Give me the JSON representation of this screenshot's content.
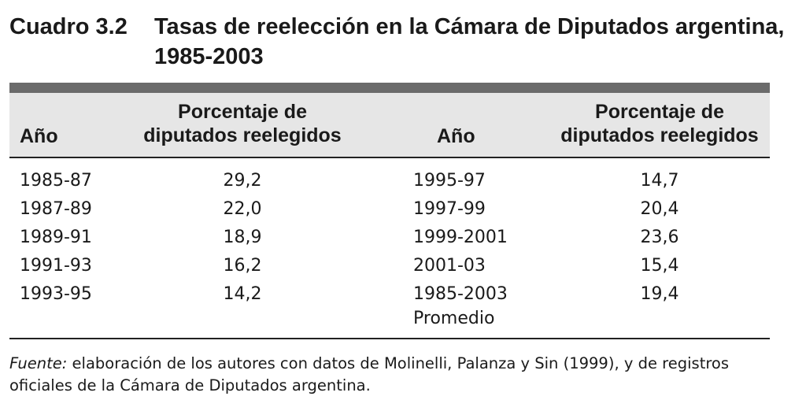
{
  "title": {
    "label": "Cuadro 3.2",
    "text_line1": "Tasas de reelección en la Cámara de Diputados argentina,",
    "text_line2": "1985-2003"
  },
  "table": {
    "headers": {
      "year": "Año",
      "pct_line1": "Porcentaje de",
      "pct_line2": "diputados reelegidos"
    },
    "left_rows": [
      {
        "year": "1985-87",
        "value": "29,2"
      },
      {
        "year": "1987-89",
        "value": "22,0"
      },
      {
        "year": "1989-91",
        "value": "18,9"
      },
      {
        "year": "1991-93",
        "value": "16,2"
      },
      {
        "year": "1993-95",
        "value": "14,2"
      }
    ],
    "right_rows": [
      {
        "year": "1995-97",
        "value": "14,7"
      },
      {
        "year": "1997-99",
        "value": "20,4"
      },
      {
        "year": "1999-2001",
        "value": "23,6"
      },
      {
        "year": "2001-03",
        "value": "15,4"
      },
      {
        "year": "1985-2003",
        "value": "19,4",
        "sub": "Promedio"
      }
    ]
  },
  "source": {
    "label": "Fuente:",
    "text": " elaboración de los autores con datos de Molinelli, Palanza y Sin (1999), y de registros oficiales de la Cámara de Diputados argentina."
  },
  "colors": {
    "band": "#6b6b6b",
    "header_bg": "#e6e6e6"
  }
}
